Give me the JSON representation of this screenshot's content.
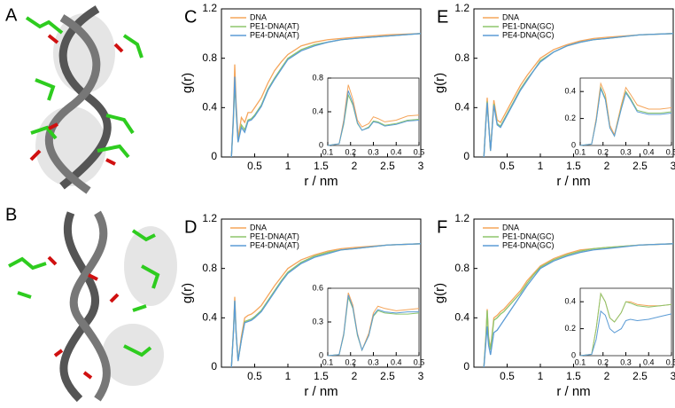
{
  "images": [
    {
      "label": "A"
    },
    {
      "label": "B"
    }
  ],
  "chart_data": [
    {
      "type": "line",
      "label": "C",
      "xlabel": "r / nm",
      "ylabel": "g(r)",
      "xlim": [
        0,
        3
      ],
      "xticks": [
        0.5,
        1,
        1.5,
        2,
        2.5,
        3
      ],
      "ylim": [
        0,
        1.2
      ],
      "yticks": [
        0,
        0.4,
        0.8,
        1.2
      ],
      "legend": "upper left",
      "x": [
        0.15,
        0.18,
        0.2,
        0.22,
        0.25,
        0.3,
        0.35,
        0.4,
        0.45,
        0.5,
        0.6,
        0.7,
        0.8,
        0.9,
        1,
        1.2,
        1.4,
        1.6,
        1.8,
        2,
        2.5,
        3
      ],
      "series": [
        {
          "name": "DNA",
          "color": "#f5a55a",
          "values": [
            0,
            0.35,
            0.75,
            0.45,
            0.15,
            0.32,
            0.28,
            0.36,
            0.36,
            0.4,
            0.48,
            0.6,
            0.7,
            0.77,
            0.83,
            0.9,
            0.93,
            0.95,
            0.96,
            0.97,
            0.99,
            1.0
          ]
        },
        {
          "name": "PE1-DNA(AT)",
          "color": "#8dc56c",
          "values": [
            0,
            0.3,
            0.6,
            0.38,
            0.12,
            0.26,
            0.22,
            0.3,
            0.31,
            0.34,
            0.42,
            0.55,
            0.64,
            0.72,
            0.8,
            0.87,
            0.91,
            0.93,
            0.95,
            0.96,
            0.98,
            1.0
          ]
        },
        {
          "name": "PE4-DNA(AT)",
          "color": "#5b9bd5",
          "values": [
            0,
            0.32,
            0.65,
            0.4,
            0.12,
            0.24,
            0.2,
            0.29,
            0.3,
            0.33,
            0.41,
            0.54,
            0.63,
            0.71,
            0.79,
            0.86,
            0.9,
            0.93,
            0.95,
            0.96,
            0.98,
            1.0
          ]
        }
      ],
      "inset": {
        "xlim": [
          0.1,
          0.5
        ],
        "xticks": [
          0.1,
          0.2,
          0.3,
          0.4,
          0.5
        ],
        "ylim": [
          0,
          0.8
        ],
        "yticks": [
          0,
          0.4,
          0.8
        ],
        "x": [
          0.1,
          0.15,
          0.17,
          0.19,
          0.21,
          0.23,
          0.25,
          0.28,
          0.3,
          0.32,
          0.35,
          0.4,
          0.45,
          0.5
        ],
        "series": [
          {
            "values": [
              0,
              0.02,
              0.3,
              0.72,
              0.55,
              0.3,
              0.22,
              0.26,
              0.34,
              0.32,
              0.28,
              0.3,
              0.35,
              0.36
            ]
          },
          {
            "values": [
              0,
              0.02,
              0.25,
              0.6,
              0.48,
              0.26,
              0.18,
              0.22,
              0.29,
              0.28,
              0.24,
              0.26,
              0.3,
              0.31
            ]
          },
          {
            "values": [
              0,
              0.02,
              0.27,
              0.65,
              0.5,
              0.27,
              0.18,
              0.21,
              0.28,
              0.27,
              0.23,
              0.25,
              0.29,
              0.3
            ]
          }
        ]
      }
    },
    {
      "type": "line",
      "label": "D",
      "xlabel": "r / nm",
      "ylabel": "g(r)",
      "xlim": [
        0,
        3
      ],
      "xticks": [
        0.5,
        1,
        1.5,
        2,
        2.5,
        3
      ],
      "ylim": [
        0,
        1.2
      ],
      "yticks": [
        0,
        0.4,
        0.8,
        1.2
      ],
      "legend": "upper left",
      "x": [
        0.15,
        0.18,
        0.2,
        0.22,
        0.25,
        0.3,
        0.35,
        0.4,
        0.45,
        0.5,
        0.6,
        0.7,
        0.8,
        0.9,
        1,
        1.2,
        1.4,
        1.6,
        1.8,
        2,
        2.5,
        3
      ],
      "series": [
        {
          "name": "DNA",
          "color": "#f5a55a",
          "values": [
            0,
            0.3,
            0.57,
            0.3,
            0.05,
            0.25,
            0.4,
            0.42,
            0.43,
            0.45,
            0.5,
            0.58,
            0.66,
            0.73,
            0.8,
            0.87,
            0.91,
            0.94,
            0.96,
            0.97,
            0.99,
            1.0
          ]
        },
        {
          "name": "PE1-DNA(AT)",
          "color": "#8dc56c",
          "values": [
            0,
            0.28,
            0.53,
            0.28,
            0.05,
            0.22,
            0.37,
            0.38,
            0.39,
            0.41,
            0.46,
            0.54,
            0.62,
            0.7,
            0.77,
            0.85,
            0.9,
            0.93,
            0.95,
            0.96,
            0.99,
            1.0
          ]
        },
        {
          "name": "PE4-DNA(AT)",
          "color": "#5b9bd5",
          "values": [
            0,
            0.28,
            0.54,
            0.28,
            0.05,
            0.22,
            0.36,
            0.37,
            0.38,
            0.4,
            0.45,
            0.53,
            0.61,
            0.69,
            0.76,
            0.84,
            0.89,
            0.92,
            0.95,
            0.96,
            0.99,
            1.0
          ]
        }
      ],
      "inset": {
        "xlim": [
          0.1,
          0.5
        ],
        "xticks": [
          0.1,
          0.2,
          0.3,
          0.4,
          0.5
        ],
        "ylim": [
          0,
          0.6
        ],
        "yticks": [
          0,
          0.3,
          0.6
        ],
        "x": [
          0.1,
          0.15,
          0.17,
          0.19,
          0.21,
          0.23,
          0.25,
          0.28,
          0.3,
          0.32,
          0.35,
          0.4,
          0.45,
          0.5
        ],
        "series": [
          {
            "values": [
              0,
              0.01,
              0.2,
              0.56,
              0.45,
              0.2,
              0.05,
              0.2,
              0.38,
              0.44,
              0.42,
              0.4,
              0.41,
              0.42
            ]
          },
          {
            "values": [
              0,
              0.01,
              0.18,
              0.52,
              0.42,
              0.18,
              0.05,
              0.18,
              0.35,
              0.4,
              0.38,
              0.37,
              0.37,
              0.38
            ]
          },
          {
            "values": [
              0,
              0.01,
              0.19,
              0.54,
              0.43,
              0.19,
              0.05,
              0.18,
              0.36,
              0.41,
              0.39,
              0.38,
              0.39,
              0.39
            ]
          }
        ]
      }
    },
    {
      "type": "line",
      "label": "E",
      "xlabel": "r / nm",
      "ylabel": "g(r)",
      "xlim": [
        0,
        3
      ],
      "xticks": [
        0.5,
        1,
        1.5,
        2,
        2.5,
        3
      ],
      "ylim": [
        0,
        1.2
      ],
      "yticks": [
        0,
        0.4,
        0.8,
        1.2
      ],
      "legend": "upper left",
      "x": [
        0.15,
        0.18,
        0.2,
        0.22,
        0.25,
        0.3,
        0.35,
        0.4,
        0.45,
        0.5,
        0.6,
        0.7,
        0.8,
        0.9,
        1,
        1.2,
        1.4,
        1.6,
        1.8,
        2,
        2.5,
        3
      ],
      "series": [
        {
          "name": "DNA",
          "color": "#f5a55a",
          "values": [
            0,
            0.3,
            0.48,
            0.3,
            0.05,
            0.46,
            0.3,
            0.28,
            0.33,
            0.38,
            0.48,
            0.58,
            0.66,
            0.73,
            0.8,
            0.87,
            0.91,
            0.94,
            0.96,
            0.97,
            0.99,
            1.0
          ]
        },
        {
          "name": "PE1-DNA(GC)",
          "color": "#8dc56c",
          "values": [
            0,
            0.28,
            0.45,
            0.28,
            0.05,
            0.43,
            0.27,
            0.25,
            0.3,
            0.35,
            0.45,
            0.55,
            0.63,
            0.7,
            0.78,
            0.85,
            0.9,
            0.93,
            0.95,
            0.96,
            0.99,
            1.0
          ]
        },
        {
          "name": "PE4-DNA(GC)",
          "color": "#5b9bd5",
          "values": [
            0,
            0.28,
            0.44,
            0.28,
            0.05,
            0.42,
            0.26,
            0.24,
            0.29,
            0.34,
            0.44,
            0.54,
            0.62,
            0.7,
            0.77,
            0.85,
            0.9,
            0.93,
            0.95,
            0.96,
            0.99,
            1.0
          ]
        }
      ],
      "inset": {
        "xlim": [
          0.1,
          0.5
        ],
        "xticks": [
          0.1,
          0.2,
          0.3,
          0.4,
          0.5
        ],
        "ylim": [
          0,
          0.5
        ],
        "yticks": [
          0,
          0.2,
          0.4
        ],
        "x": [
          0.1,
          0.15,
          0.17,
          0.19,
          0.21,
          0.23,
          0.25,
          0.28,
          0.3,
          0.32,
          0.35,
          0.4,
          0.45,
          0.5
        ],
        "series": [
          {
            "values": [
              0,
              0.01,
              0.2,
              0.46,
              0.38,
              0.15,
              0.08,
              0.3,
              0.43,
              0.38,
              0.3,
              0.27,
              0.27,
              0.28
            ]
          },
          {
            "values": [
              0,
              0.01,
              0.18,
              0.43,
              0.35,
              0.13,
              0.07,
              0.28,
              0.4,
              0.35,
              0.26,
              0.24,
              0.24,
              0.25
            ]
          },
          {
            "values": [
              0,
              0.01,
              0.18,
              0.42,
              0.34,
              0.13,
              0.07,
              0.27,
              0.39,
              0.34,
              0.25,
              0.23,
              0.23,
              0.24
            ]
          }
        ]
      }
    },
    {
      "type": "line",
      "label": "F",
      "xlabel": "r / nm",
      "ylabel": "g(r)",
      "xlim": [
        0,
        3
      ],
      "xticks": [
        0.5,
        1,
        1.5,
        2,
        2.5,
        3
      ],
      "ylim": [
        0,
        1.2
      ],
      "yticks": [
        0,
        0.4,
        0.8,
        1.2
      ],
      "legend": "upper left",
      "x": [
        0.15,
        0.18,
        0.2,
        0.22,
        0.25,
        0.3,
        0.35,
        0.4,
        0.45,
        0.5,
        0.6,
        0.7,
        0.8,
        0.9,
        1,
        1.2,
        1.4,
        1.6,
        1.8,
        2,
        2.5,
        3
      ],
      "series": [
        {
          "name": "DNA",
          "color": "#f5a55a",
          "values": [
            0,
            0.25,
            0.47,
            0.25,
            0.15,
            0.4,
            0.42,
            0.45,
            0.47,
            0.5,
            0.56,
            0.62,
            0.7,
            0.76,
            0.82,
            0.88,
            0.92,
            0.95,
            0.96,
            0.97,
            0.99,
            1.0
          ]
        },
        {
          "name": "PE1-DNA(GC)",
          "color": "#8dc56c",
          "values": [
            0,
            0.24,
            0.46,
            0.24,
            0.14,
            0.38,
            0.4,
            0.43,
            0.45,
            0.48,
            0.54,
            0.6,
            0.68,
            0.75,
            0.81,
            0.87,
            0.91,
            0.94,
            0.96,
            0.97,
            0.99,
            1.0
          ]
        },
        {
          "name": "PE4-DNA(GC)",
          "color": "#5b9bd5",
          "values": [
            0,
            0.2,
            0.33,
            0.18,
            0.1,
            0.28,
            0.3,
            0.34,
            0.38,
            0.42,
            0.5,
            0.58,
            0.66,
            0.73,
            0.8,
            0.86,
            0.9,
            0.93,
            0.95,
            0.96,
            0.99,
            1.0
          ]
        }
      ],
      "inset": {
        "xlim": [
          0.1,
          0.5
        ],
        "xticks": [
          0.1,
          0.2,
          0.3,
          0.4,
          0.5
        ],
        "ylim": [
          0,
          0.5
        ],
        "yticks": [
          0,
          0.2,
          0.4
        ],
        "x": [
          0.1,
          0.15,
          0.17,
          0.19,
          0.21,
          0.23,
          0.25,
          0.28,
          0.3,
          0.32,
          0.35,
          0.4,
          0.45,
          0.5
        ],
        "series": [
          {
            "values": [
              0,
              0.01,
              0.2,
              0.46,
              0.4,
              0.28,
              0.25,
              0.32,
              0.4,
              0.4,
              0.38,
              0.37,
              0.37,
              0.38
            ]
          },
          {
            "values": [
              0,
              0.01,
              0.2,
              0.46,
              0.4,
              0.28,
              0.25,
              0.32,
              0.4,
              0.39,
              0.37,
              0.36,
              0.37,
              0.38
            ]
          },
          {
            "values": [
              0,
              0.01,
              0.12,
              0.33,
              0.3,
              0.2,
              0.17,
              0.2,
              0.26,
              0.27,
              0.26,
              0.27,
              0.29,
              0.31
            ]
          }
        ]
      }
    }
  ]
}
